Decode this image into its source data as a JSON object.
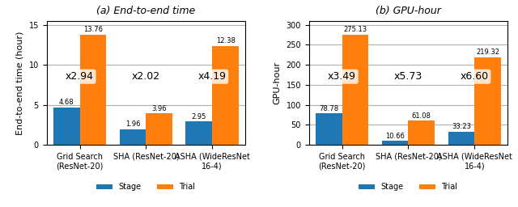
{
  "chart_data": [
    {
      "type": "bar",
      "title": "(a) End-to-end time",
      "y_label": "End-to-end time (hour)",
      "categories": [
        "Grid Search (ResNet-20)",
        "SHA (ResNet-20)",
        "ASHA (WideResNet 16-4)"
      ],
      "series": [
        {
          "name": "Stage",
          "values": [
            4.68,
            1.96,
            2.95
          ]
        },
        {
          "name": "Trial",
          "values": [
            13.76,
            3.96,
            12.38
          ]
        }
      ],
      "annotations": [
        "x2.94",
        "x2.02",
        "x4.19"
      ],
      "ylim": [
        0,
        15.5
      ],
      "yticks": [
        0,
        5,
        10,
        15
      ],
      "grid": true,
      "data_labels": true,
      "legend": "upper center"
    },
    {
      "type": "bar",
      "title": "(b) GPU-hour",
      "y_label": "GPU-hour",
      "categories": [
        "Grid Search (ResNet-20)",
        "SHA (ResNet-20)",
        "ASHA (WideResNet 16-4)"
      ],
      "series": [
        {
          "name": "Stage",
          "values": [
            78.78,
            10.66,
            33.23
          ]
        },
        {
          "name": "Trial",
          "values": [
            275.13,
            61.08,
            219.32
          ]
        }
      ],
      "annotations": [
        "x3.49",
        "x5.73",
        "x6.60"
      ],
      "ylim": [
        0,
        310
      ],
      "yticks": [
        0,
        50,
        100,
        150,
        200,
        250,
        300
      ],
      "grid": true,
      "data_labels": true,
      "legend": "upper center"
    }
  ]
}
